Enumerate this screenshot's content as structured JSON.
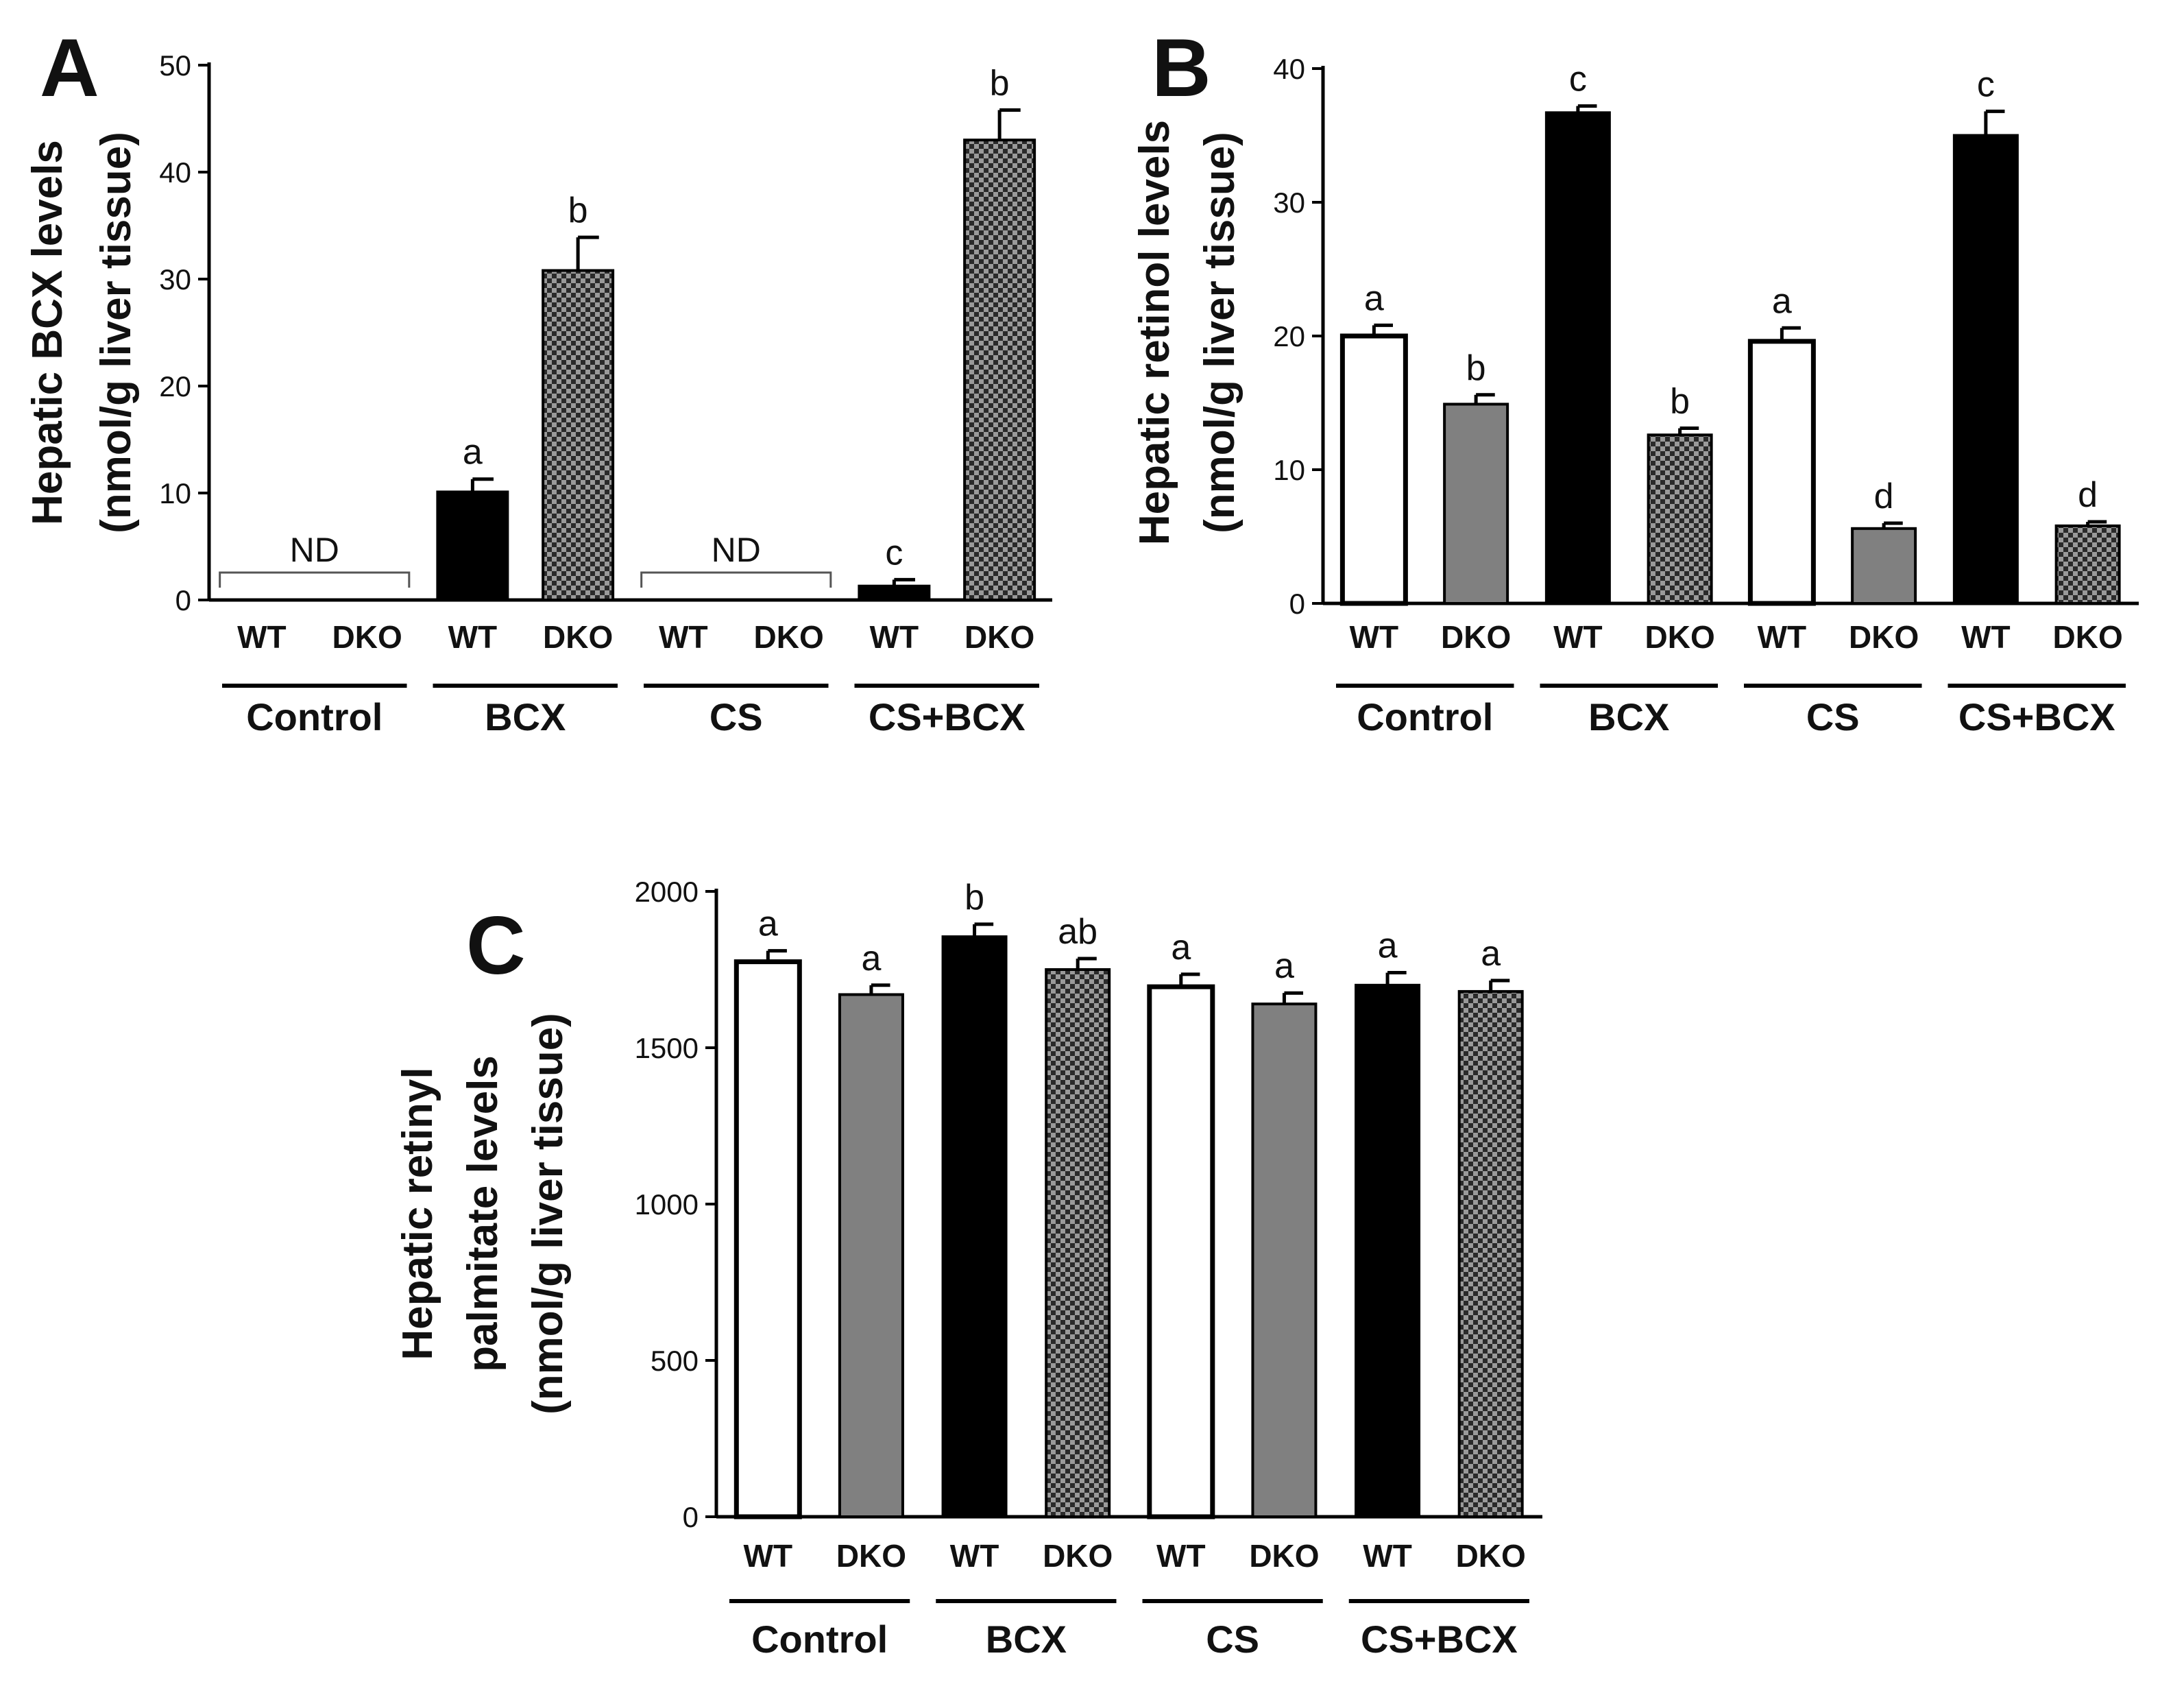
{
  "colors": {
    "black": "#000000",
    "grey": "#808080",
    "white": "#ffffff",
    "checker_dark": "#2a2a2a",
    "checker_light": "#9a9a9a"
  },
  "chart_data": [
    {
      "type": "bar",
      "panel": "A",
      "ylabel": [
        "Hepatic BCX levels",
        "(nmol/g liver tissue)"
      ],
      "ylim": [
        0,
        50
      ],
      "yticks": [
        0,
        10,
        20,
        30,
        40,
        50
      ],
      "groups": [
        "Control",
        "BCX",
        "CS",
        "CS+BCX"
      ],
      "genotypes": [
        "WT",
        "DKO",
        "WT",
        "DKO",
        "WT",
        "DKO",
        "WT",
        "DKO"
      ],
      "fills": [
        "white",
        "grey",
        "black",
        "checker",
        "white",
        "grey",
        "black",
        "checker"
      ],
      "values": [
        0,
        0,
        10.1,
        30.8,
        0,
        0,
        1.3,
        43.0
      ],
      "errors": [
        0,
        0,
        1.2,
        3.1,
        0,
        0,
        0.6,
        2.8
      ],
      "letters": [
        "",
        "",
        "a",
        "b",
        "",
        "",
        "c",
        "b"
      ],
      "nd_label": "ND",
      "nd_groups": [
        0,
        2
      ]
    },
    {
      "type": "bar",
      "panel": "B",
      "ylabel": [
        "Hepatic retinol levels",
        "(nmol/g liver tissue)"
      ],
      "ylim": [
        0,
        40
      ],
      "yticks": [
        0,
        10,
        20,
        30,
        40
      ],
      "groups": [
        "Control",
        "BCX",
        "CS",
        "CS+BCX"
      ],
      "genotypes": [
        "WT",
        "DKO",
        "WT",
        "DKO",
        "WT",
        "DKO",
        "WT",
        "DKO"
      ],
      "fills": [
        "white",
        "grey",
        "black",
        "checker",
        "white",
        "grey",
        "black",
        "checker"
      ],
      "values": [
        20.0,
        14.9,
        36.7,
        12.6,
        19.6,
        5.6,
        35.0,
        5.8
      ],
      "errors": [
        0.8,
        0.7,
        0.5,
        0.5,
        1.0,
        0.4,
        1.8,
        0.3
      ],
      "letters": [
        "a",
        "b",
        "c",
        "b",
        "a",
        "d",
        "c",
        "d"
      ]
    },
    {
      "type": "bar",
      "panel": "C",
      "ylabel": [
        "Hepatic retinyl",
        "palmitate levels",
        "(nmol/g liver tissue)"
      ],
      "ylim": [
        0,
        2000
      ],
      "yticks": [
        0,
        500,
        1000,
        1500,
        2000
      ],
      "groups": [
        "Control",
        "BCX",
        "CS",
        "CS+BCX"
      ],
      "genotypes": [
        "WT",
        "DKO",
        "WT",
        "DKO",
        "WT",
        "DKO",
        "WT",
        "DKO"
      ],
      "fills": [
        "white",
        "grey",
        "black",
        "checker",
        "white",
        "grey",
        "black",
        "checker"
      ],
      "values": [
        1775,
        1670,
        1855,
        1750,
        1695,
        1640,
        1700,
        1680
      ],
      "errors": [
        35,
        30,
        40,
        35,
        40,
        35,
        40,
        35
      ],
      "letters": [
        "a",
        "a",
        "b",
        "ab",
        "a",
        "a",
        "a",
        "a"
      ]
    }
  ]
}
